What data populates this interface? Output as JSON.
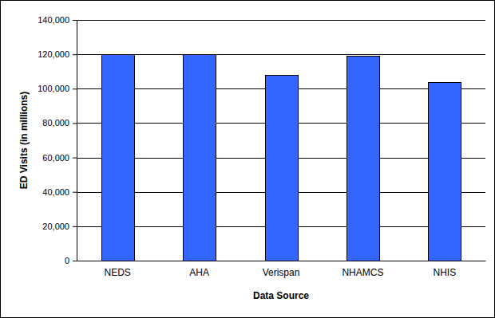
{
  "chart_data": {
    "type": "bar",
    "x_label": "Data Source",
    "y_label": "ED Visits (in millions)",
    "categories": [
      "NEDS",
      "AHA",
      "Verispan",
      "NHAMCS",
      "NHIS"
    ],
    "values": [
      120000,
      120000,
      108000,
      119000,
      104000
    ],
    "color": "#3366ff",
    "ylim": [
      0,
      140000
    ],
    "yticks": [
      0,
      {
        "value": 20000,
        "label": "20,000"
      },
      {
        "value": 40000,
        "label": "40,000"
      },
      {
        "value": 60000,
        "label": "60,000"
      },
      {
        "value": 80000,
        "label": "80,000"
      },
      {
        "value": 100000,
        "label": "100,000"
      },
      {
        "value": 120000,
        "label": "120,000"
      },
      {
        "value": 140000,
        "label": "140,000"
      }
    ],
    "grid": true
  }
}
